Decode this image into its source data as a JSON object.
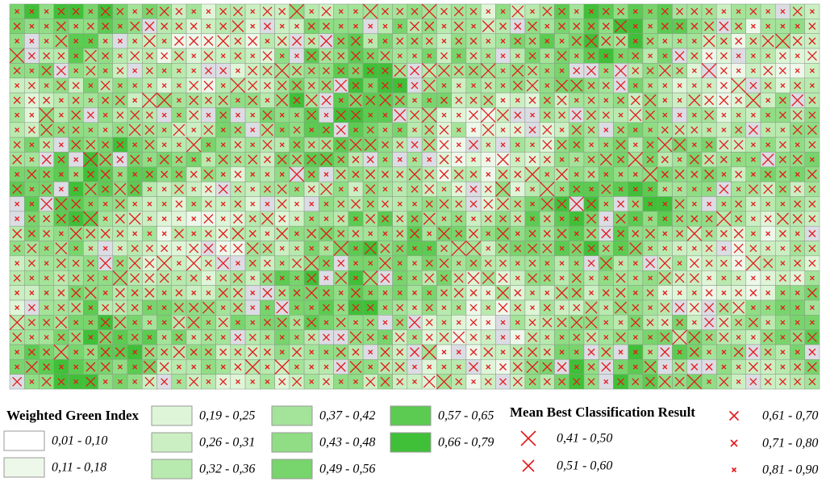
{
  "legend_green": {
    "title": "Weighted Green Index",
    "items": [
      {
        "label": "0,01 - 0,10",
        "color": "#ffffff"
      },
      {
        "label": "0,11 - 0,18",
        "color": "#eef8ea"
      },
      {
        "label": "0,19 - 0,25",
        "color": "#dff5d8"
      },
      {
        "label": "0,26 - 0,31",
        "color": "#cbefc2"
      },
      {
        "label": "0,32 - 0,36",
        "color": "#b8e9ae"
      },
      {
        "label": "0,37 - 0,42",
        "color": "#a4e39a"
      },
      {
        "label": "0,43 - 0,48",
        "color": "#90dd85"
      },
      {
        "label": "0,49 - 0,56",
        "color": "#78d46c"
      },
      {
        "label": "0,57 - 0,65",
        "color": "#5ccb51"
      },
      {
        "label": "0,66 - 0,79",
        "color": "#40c038"
      }
    ]
  },
  "legend_classification": {
    "title": "Mean Best Classification Result",
    "color": "#e31a1c",
    "items": [
      {
        "label": "0,41 - 0,50"
      },
      {
        "label": "0,51 - 0,60"
      },
      {
        "label": "0,61 - 0,70"
      },
      {
        "label": "0,71 - 0,80"
      },
      {
        "label": "0,81 - 0,90"
      }
    ]
  }
}
